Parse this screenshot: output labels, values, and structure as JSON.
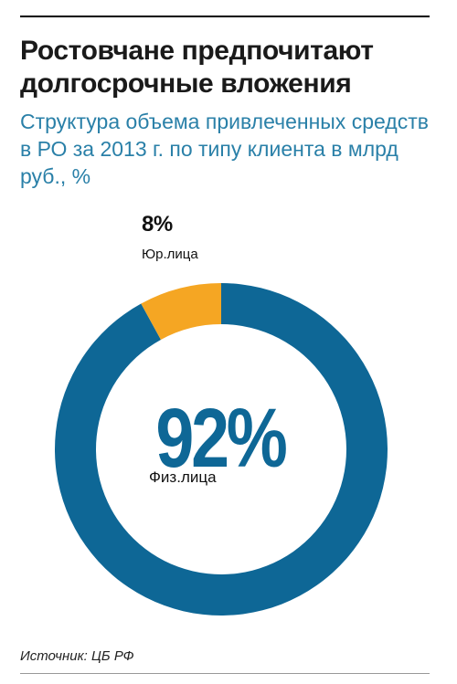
{
  "header": {
    "title": "Ростовчане предпочитают долгосрочные вложения",
    "subtitle": "Структура объема привлеченных средств в РО за 2013 г. по типу клиента в млрд руб., %"
  },
  "labels": {
    "legal_pct": "8%",
    "legal_name": "Юр.лица",
    "individual_pct": "92%",
    "individual_name": "Физ.лица"
  },
  "footer": {
    "source": "Источник: ЦБ РФ"
  },
  "colors": {
    "individuals": "#0e6796",
    "legal": "#f5a623",
    "title": "#1a1a1a",
    "subtitle": "#2a80a8"
  },
  "chart_data": {
    "type": "pie",
    "variant": "donut",
    "categories": [
      "Физ.лица",
      "Юр.лица"
    ],
    "values": [
      92,
      8
    ],
    "unit": "%"
  }
}
